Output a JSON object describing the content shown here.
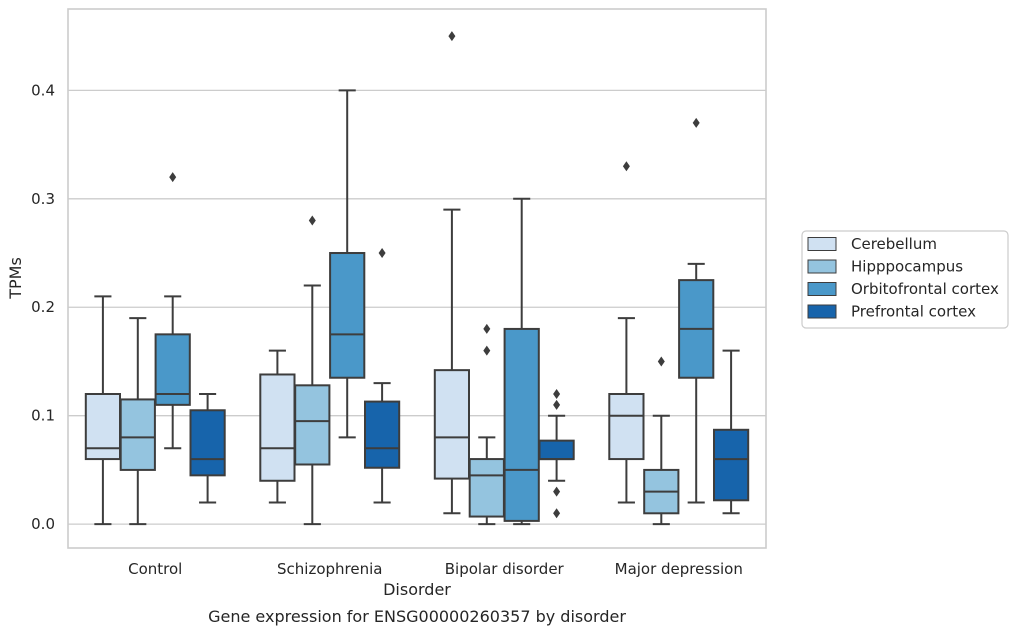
{
  "chart_data": {
    "type": "box",
    "title": "Gene expression for ENSG00000260357 by disorder",
    "xlabel": "Disorder",
    "ylabel": "TPMs",
    "ylim": [
      -0.022,
      0.475
    ],
    "yticks": [
      0.0,
      0.1,
      0.2,
      0.3,
      0.4
    ],
    "ytick_labels": [
      "0.0",
      "0.1",
      "0.2",
      "0.3",
      "0.4"
    ],
    "grid": "horizontal",
    "legend_position": "right",
    "categories": [
      "Control",
      "Schizophrenia",
      "Bipolar disorder",
      "Major depression"
    ],
    "series": [
      {
        "name": "Cerebellum",
        "color": "#d0e1f2",
        "boxes": [
          {
            "whislo": 0.0,
            "q1": 0.06,
            "med": 0.07,
            "q3": 0.12,
            "whishi": 0.21,
            "fliers": []
          },
          {
            "whislo": 0.02,
            "q1": 0.04,
            "med": 0.07,
            "q3": 0.138,
            "whishi": 0.16,
            "fliers": []
          },
          {
            "whislo": 0.01,
            "q1": 0.042,
            "med": 0.08,
            "q3": 0.142,
            "whishi": 0.29,
            "fliers": [
              0.45
            ]
          },
          {
            "whislo": 0.02,
            "q1": 0.06,
            "med": 0.1,
            "q3": 0.12,
            "whishi": 0.19,
            "fliers": [
              0.33
            ]
          }
        ]
      },
      {
        "name": "Hipppocampus",
        "color": "#94c4df",
        "boxes": [
          {
            "whislo": 0.0,
            "q1": 0.05,
            "med": 0.08,
            "q3": 0.115,
            "whishi": 0.19,
            "fliers": []
          },
          {
            "whislo": 0.0,
            "q1": 0.055,
            "med": 0.095,
            "q3": 0.128,
            "whishi": 0.22,
            "fliers": [
              0.28
            ]
          },
          {
            "whislo": 0.0,
            "q1": 0.007,
            "med": 0.045,
            "q3": 0.06,
            "whishi": 0.08,
            "fliers": [
              0.16,
              0.18
            ]
          },
          {
            "whislo": 0.0,
            "q1": 0.01,
            "med": 0.03,
            "q3": 0.05,
            "whishi": 0.1,
            "fliers": [
              0.15
            ]
          }
        ]
      },
      {
        "name": "Orbitofrontal cortex",
        "color": "#4a98c9",
        "boxes": [
          {
            "whislo": 0.07,
            "q1": 0.11,
            "med": 0.12,
            "q3": 0.175,
            "whishi": 0.21,
            "fliers": [
              0.32
            ]
          },
          {
            "whislo": 0.08,
            "q1": 0.135,
            "med": 0.175,
            "q3": 0.25,
            "whishi": 0.4,
            "fliers": []
          },
          {
            "whislo": 0.0,
            "q1": 0.003,
            "med": 0.05,
            "q3": 0.18,
            "whishi": 0.3,
            "fliers": []
          },
          {
            "whislo": 0.02,
            "q1": 0.135,
            "med": 0.18,
            "q3": 0.225,
            "whishi": 0.24,
            "fliers": [
              0.37
            ]
          }
        ]
      },
      {
        "name": "Prefrontal cortex",
        "color": "#1764ab",
        "boxes": [
          {
            "whislo": 0.02,
            "q1": 0.045,
            "med": 0.06,
            "q3": 0.105,
            "whishi": 0.12,
            "fliers": []
          },
          {
            "whislo": 0.02,
            "q1": 0.052,
            "med": 0.07,
            "q3": 0.113,
            "whishi": 0.13,
            "fliers": [
              0.25
            ]
          },
          {
            "whislo": 0.04,
            "q1": 0.06,
            "med": 0.06,
            "q3": 0.077,
            "whishi": 0.1,
            "fliers": [
              0.01,
              0.03,
              0.11,
              0.12
            ]
          },
          {
            "whislo": 0.01,
            "q1": 0.022,
            "med": 0.06,
            "q3": 0.087,
            "whishi": 0.16,
            "fliers": []
          }
        ]
      }
    ]
  }
}
